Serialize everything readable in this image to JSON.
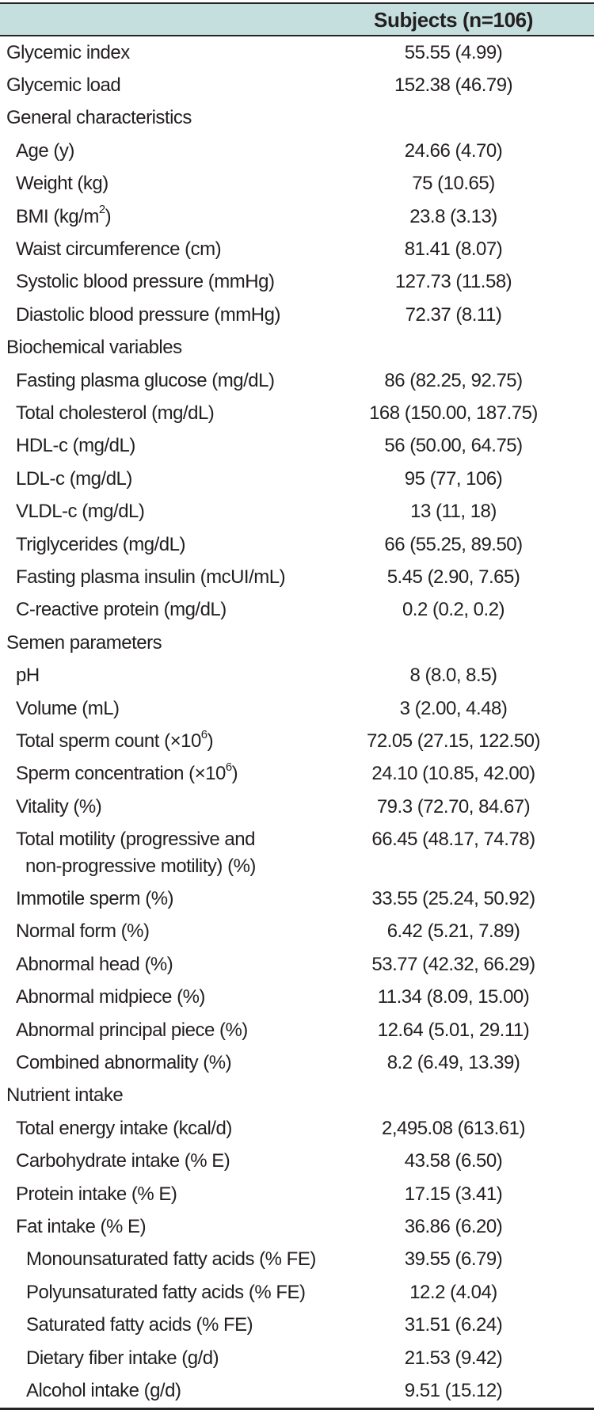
{
  "colors": {
    "header_bg": "#c5dfdf",
    "border": "#272324",
    "text": "#231f20"
  },
  "table": {
    "header": {
      "column_label": "Subjects (n=106)"
    },
    "rows": [
      {
        "label": "Glycemic index",
        "value": "55.55 (4.99)",
        "indent": 0
      },
      {
        "label": "Glycemic load",
        "value": "152.38 (46.79)",
        "indent": 0
      },
      {
        "label": "General characteristics",
        "value": "",
        "indent": 0
      },
      {
        "label": "Age (y)",
        "value": "24.66 (4.70)",
        "indent": 1
      },
      {
        "label": "Weight (kg)",
        "value": "75 (10.65)",
        "indent": 1
      },
      {
        "parts": [
          {
            "t": "BMI (kg/m"
          },
          {
            "t": "2",
            "sup": true
          },
          {
            "t": ")"
          }
        ],
        "value": "23.8 (3.13)",
        "indent": 1
      },
      {
        "label": "Waist circumference (cm)",
        "value": "81.41 (8.07)",
        "indent": 1
      },
      {
        "label": "Systolic blood pressure (mmHg)",
        "value": "127.73 (11.58)",
        "indent": 1
      },
      {
        "label": "Diastolic blood pressure (mmHg)",
        "value": "72.37 (8.11)",
        "indent": 1
      },
      {
        "label": "Biochemical variables",
        "value": "",
        "indent": 0
      },
      {
        "label": "Fasting plasma glucose (mg/dL)",
        "value": "86 (82.25, 92.75)",
        "indent": 1
      },
      {
        "label": "Total cholesterol (mg/dL)",
        "value": "168 (150.00, 187.75)",
        "indent": 1
      },
      {
        "label": "HDL-c (mg/dL)",
        "value": "56 (50.00, 64.75)",
        "indent": 1
      },
      {
        "label": "LDL-c (mg/dL)",
        "value": "95 (77, 106)",
        "indent": 1
      },
      {
        "label": "VLDL-c (mg/dL)",
        "value": "13 (11, 18)",
        "indent": 1
      },
      {
        "label": "Triglycerides (mg/dL)",
        "value": "66 (55.25, 89.50)",
        "indent": 1
      },
      {
        "label": "Fasting plasma insulin (mcUI/mL)",
        "value": "5.45 (2.90, 7.65)",
        "indent": 1
      },
      {
        "label": "C-reactive protein (mg/dL)",
        "value": "0.2 (0.2, 0.2)",
        "indent": 1
      },
      {
        "label": "Semen parameters",
        "value": "",
        "indent": 0
      },
      {
        "label": "pH",
        "value": "8 (8.0, 8.5)",
        "indent": 1
      },
      {
        "label": "Volume (mL)",
        "value": "3 (2.00, 4.48)",
        "indent": 1
      },
      {
        "parts": [
          {
            "t": "Total sperm count (×10"
          },
          {
            "t": "6",
            "sup": true
          },
          {
            "t": ")"
          }
        ],
        "value": "72.05 (27.15, 122.50)",
        "indent": 1
      },
      {
        "parts": [
          {
            "t": "Sperm concentration (×10"
          },
          {
            "t": "6",
            "sup": true
          },
          {
            "t": ")"
          }
        ],
        "value": "24.10 (10.85, 42.00)",
        "indent": 1
      },
      {
        "label": "Vitality (%)",
        "value": "79.3 (72.70, 84.67)",
        "indent": 1
      },
      {
        "label": "Total motility (progressive and",
        "line2": "non-progressive motility) (%)",
        "value": "66.45 (48.17, 74.78)",
        "indent": 1
      },
      {
        "label": "Immotile sperm (%)",
        "value": "33.55 (25.24, 50.92)",
        "indent": 1
      },
      {
        "label": "Normal form (%)",
        "value": "6.42 (5.21, 7.89)",
        "indent": 1
      },
      {
        "label": "Abnormal head (%)",
        "value": "53.77 (42.32, 66.29)",
        "indent": 1
      },
      {
        "label": "Abnormal midpiece (%)",
        "value": "11.34 (8.09, 15.00)",
        "indent": 1
      },
      {
        "label": "Abnormal principal piece (%)",
        "value": "12.64 (5.01, 29.11)",
        "indent": 1
      },
      {
        "label": "Combined abnormality (%)",
        "value": "8.2 (6.49, 13.39)",
        "indent": 1
      },
      {
        "label": "Nutrient intake",
        "value": "",
        "indent": 0
      },
      {
        "label": "Total energy intake (kcal/d)",
        "value": "2,495.08 (613.61)",
        "indent": 1
      },
      {
        "label": "Carbohydrate intake (% E)",
        "value": "43.58 (6.50)",
        "indent": 1
      },
      {
        "label": "Protein intake (% E)",
        "value": "17.15 (3.41)",
        "indent": 1
      },
      {
        "label": "Fat intake (% E)",
        "value": "36.86 (6.20)",
        "indent": 1
      },
      {
        "label": "Monounsaturated fatty acids (% FE)",
        "value": "39.55 (6.79)",
        "indent": 2
      },
      {
        "label": "Polyunsaturated fatty acids (% FE)",
        "value": "12.2 (4.04)",
        "indent": 2
      },
      {
        "label": "Saturated fatty acids (% FE)",
        "value": "31.51 (6.24)",
        "indent": 2
      },
      {
        "label": "Dietary fiber intake (g/d)",
        "value": "21.53 (9.42)",
        "indent": 2
      },
      {
        "label": "Alcohol intake (g/d)",
        "value": "9.51 (15.12)",
        "indent": 2
      }
    ]
  }
}
